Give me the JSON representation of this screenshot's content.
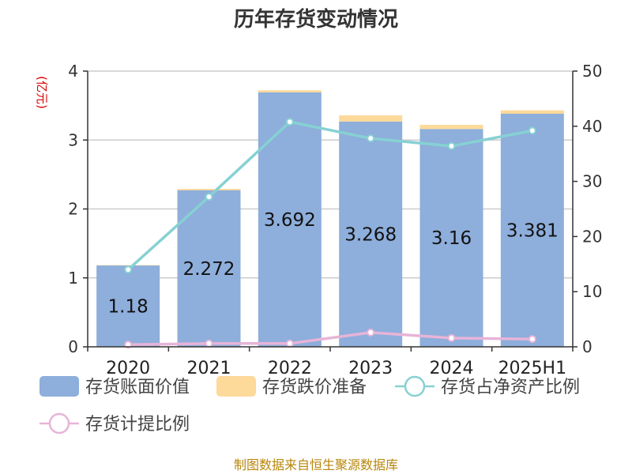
{
  "chart_data": {
    "type": "bar",
    "title": "历年存货变动情况",
    "categories": [
      "2020",
      "2021",
      "2022",
      "2023",
      "2024",
      "2025H1"
    ],
    "y_left": {
      "unit": "(亿元)",
      "range": [
        0,
        4
      ],
      "ticks": [
        "0",
        "1",
        "2",
        "3",
        "4"
      ]
    },
    "y_right": {
      "range": [
        0,
        50
      ],
      "ticks": [
        "0",
        "10",
        "20",
        "30",
        "40",
        "50"
      ]
    },
    "series": [
      {
        "name": "存货账面价值",
        "kind": "bar",
        "axis": "left",
        "color": "#8eaedb",
        "values": [
          1.18,
          2.272,
          3.692,
          3.268,
          3.16,
          3.381
        ],
        "labels": [
          "1.18",
          "2.272",
          "3.692",
          "3.268",
          "3.16",
          "3.381"
        ]
      },
      {
        "name": "存货跌价准备",
        "kind": "bar-stacked",
        "axis": "left",
        "color": "#fdd99a",
        "values": [
          0.005,
          0.02,
          0.03,
          0.09,
          0.06,
          0.05
        ]
      },
      {
        "name": "存货占净资产比例",
        "kind": "line",
        "axis": "right",
        "color": "#86d1d3",
        "values": [
          14.0,
          27.2,
          40.8,
          37.8,
          36.4,
          39.2
        ]
      },
      {
        "name": "存货计提比例",
        "kind": "line",
        "axis": "right",
        "color": "#e7b4d8",
        "values": [
          0.4,
          0.6,
          0.6,
          2.6,
          1.6,
          1.4
        ]
      }
    ],
    "grid": true,
    "legend_position": "bottom"
  },
  "footer": {
    "source": "制图数据来自恒生聚源数据库"
  }
}
